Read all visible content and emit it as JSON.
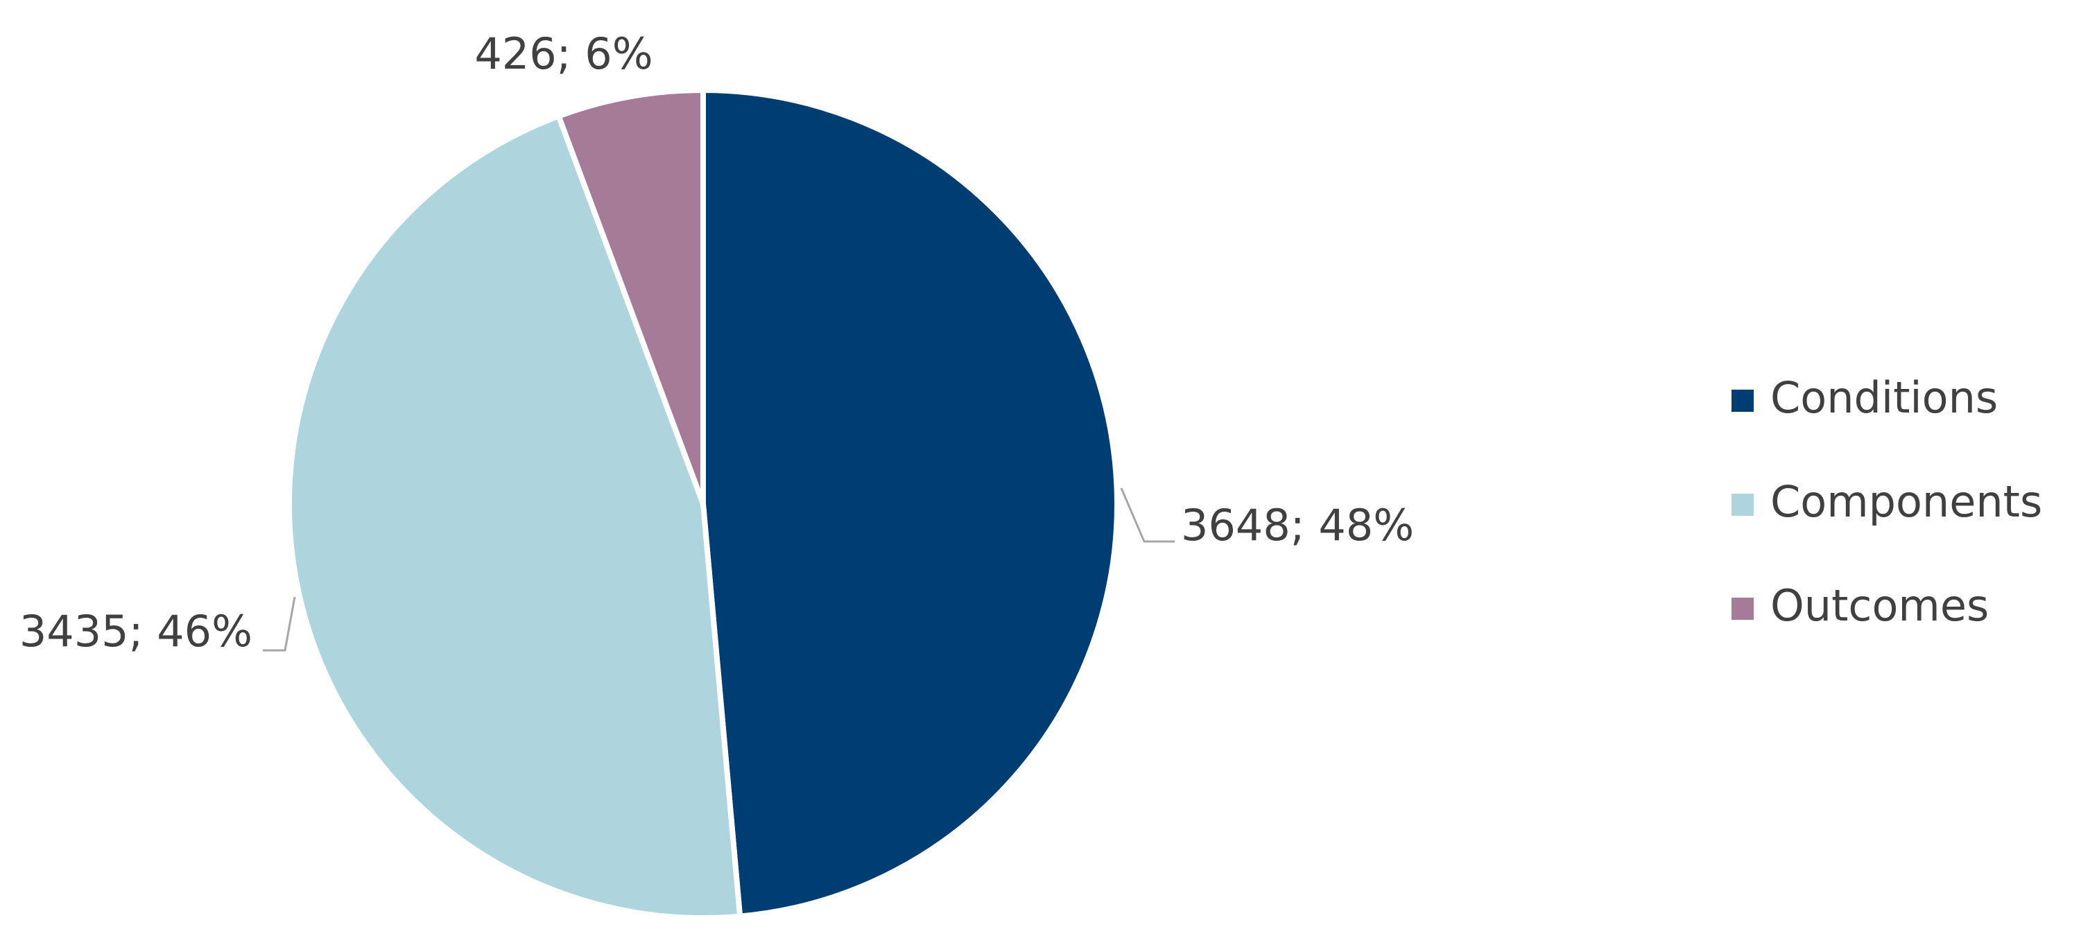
{
  "chart_data": {
    "type": "pie",
    "categories": [
      "Conditions",
      "Components",
      "Outcomes"
    ],
    "values": [
      3648,
      3435,
      426
    ],
    "value_labels": [
      "3648; 48%",
      "3435; 46%",
      "426; 6%"
    ],
    "colors": [
      "#003d73",
      "#aed5de",
      "#a67b98"
    ]
  }
}
